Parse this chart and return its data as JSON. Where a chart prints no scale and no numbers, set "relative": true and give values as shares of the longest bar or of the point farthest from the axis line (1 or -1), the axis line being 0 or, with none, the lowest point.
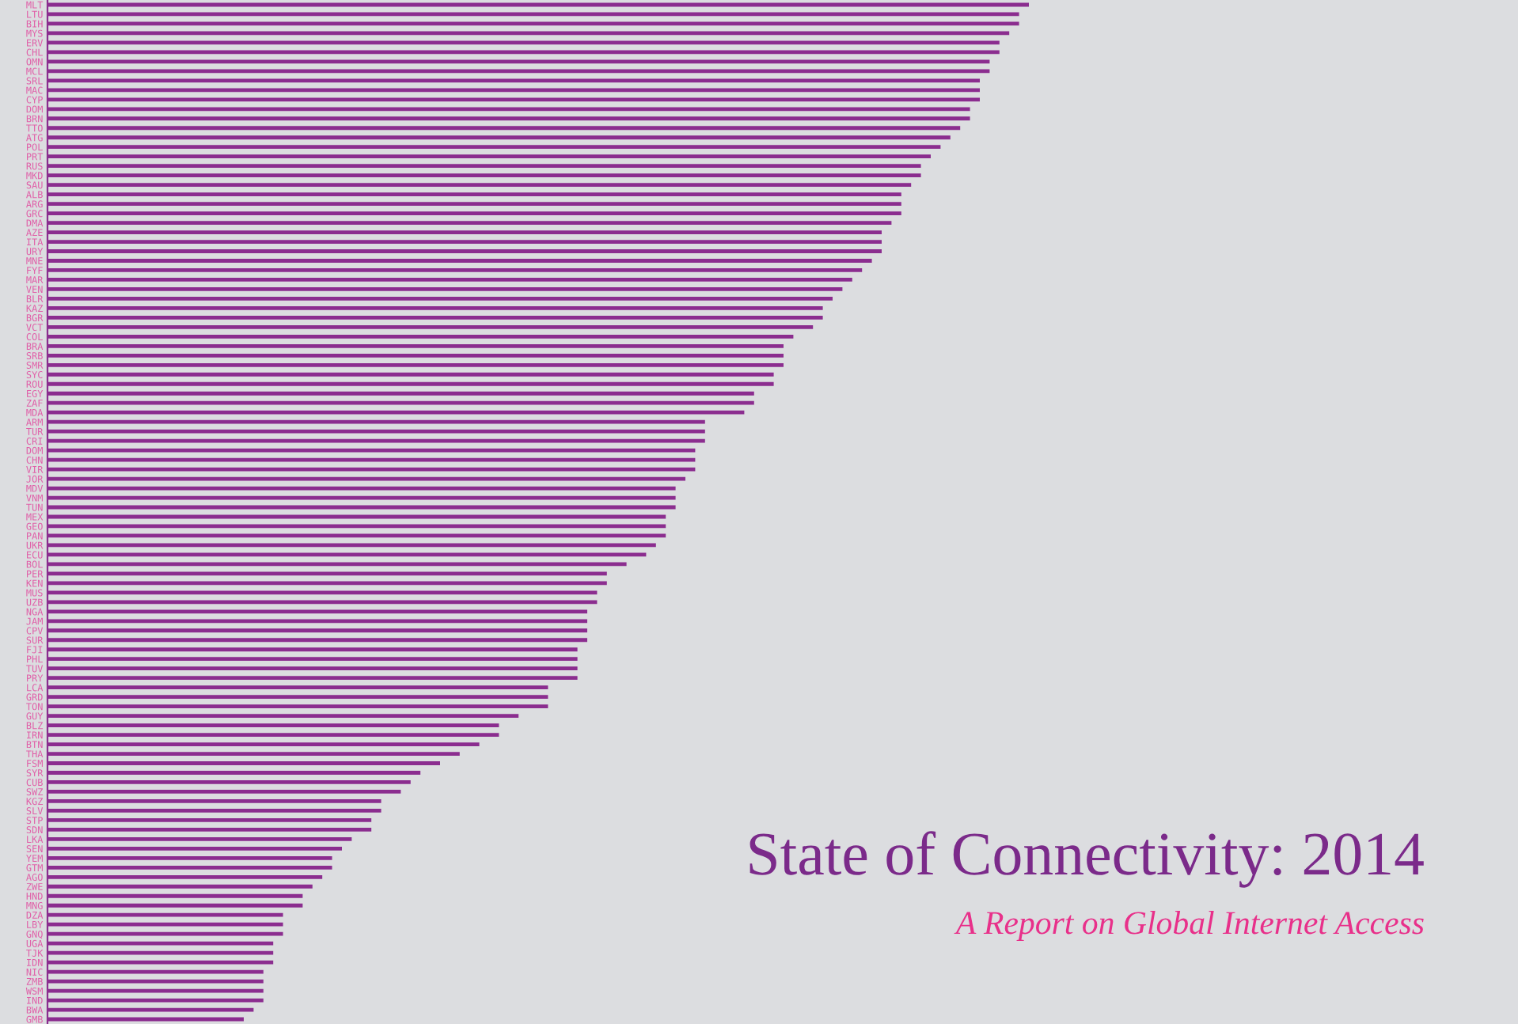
{
  "chart_data": {
    "type": "bar",
    "orientation": "horizontal",
    "relative": true,
    "title": "State of Connectivity: 2014",
    "subtitle": "A Report on Global Internet Access",
    "color": "#8b2d8f",
    "categories": [
      "MLT",
      "LTU",
      "BIH",
      "MYS",
      "ERV",
      "CHL",
      "OMN",
      "MCL",
      "SRL",
      "MAC",
      "CYP",
      "DOM",
      "BRN",
      "TTO",
      "ATG",
      "POL",
      "PRT",
      "RUS",
      "MKD",
      "SAU",
      "ALB",
      "ARG",
      "GRC",
      "DMA",
      "AZE",
      "ITA",
      "URY",
      "MNE",
      "FYF",
      "MAR",
      "VEN",
      "BLR",
      "KAZ",
      "BGR",
      "VCT",
      "COL",
      "BRA",
      "SRB",
      "SMR",
      "SYC",
      "ROU",
      "EGY",
      "ZAF",
      "MDA",
      "ARM",
      "TUR",
      "CRI",
      "DOM",
      "CHN",
      "VIR",
      "JOR",
      "MDV",
      "VNM",
      "TUN",
      "MEX",
      "GEO",
      "PAN",
      "UKR",
      "ECU",
      "BOL",
      "PER",
      "KEN",
      "MUS",
      "UZB",
      "NGA",
      "JAM",
      "CPV",
      "SUR",
      "FJI",
      "PHL",
      "TUV",
      "PRY",
      "LCA",
      "GRD",
      "TON",
      "GUY",
      "BLZ",
      "IRN",
      "BTN",
      "THA",
      "FSM",
      "SYR",
      "CUB",
      "SWZ",
      "KGZ",
      "SLV",
      "STP",
      "SDN",
      "LKA",
      "SEN",
      "YEM",
      "GTM",
      "AGO",
      "ZWE",
      "HND",
      "MNG",
      "DZA",
      "LBY",
      "GNQ",
      "UGA",
      "TJK",
      "IDN",
      "NIC",
      "ZMB",
      "WSM",
      "IND",
      "BWA",
      "GMB"
    ],
    "values": [
      1.0,
      0.99,
      0.99,
      0.98,
      0.97,
      0.97,
      0.96,
      0.96,
      0.95,
      0.95,
      0.95,
      0.94,
      0.94,
      0.93,
      0.92,
      0.91,
      0.9,
      0.89,
      0.89,
      0.88,
      0.87,
      0.87,
      0.87,
      0.86,
      0.85,
      0.85,
      0.85,
      0.84,
      0.83,
      0.82,
      0.81,
      0.8,
      0.79,
      0.79,
      0.78,
      0.76,
      0.75,
      0.75,
      0.75,
      0.74,
      0.74,
      0.72,
      0.72,
      0.71,
      0.67,
      0.67,
      0.67,
      0.66,
      0.66,
      0.66,
      0.65,
      0.64,
      0.64,
      0.64,
      0.63,
      0.63,
      0.63,
      0.62,
      0.61,
      0.59,
      0.57,
      0.57,
      0.56,
      0.56,
      0.55,
      0.55,
      0.55,
      0.55,
      0.54,
      0.54,
      0.54,
      0.54,
      0.51,
      0.51,
      0.51,
      0.48,
      0.46,
      0.46,
      0.44,
      0.42,
      0.4,
      0.38,
      0.37,
      0.36,
      0.34,
      0.34,
      0.33,
      0.33,
      0.31,
      0.3,
      0.29,
      0.29,
      0.28,
      0.27,
      0.26,
      0.26,
      0.24,
      0.24,
      0.24,
      0.23,
      0.23,
      0.23,
      0.22,
      0.22,
      0.22,
      0.22,
      0.21,
      0.2
    ]
  }
}
